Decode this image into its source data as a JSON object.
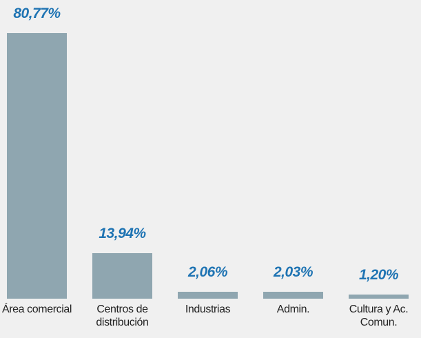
{
  "chart_data": {
    "type": "bar",
    "categories": [
      "Área comercial",
      "Centros de distribución",
      "Industrias",
      "Admin.",
      "Cultura y Ac. Comun."
    ],
    "values": [
      80.77,
      13.94,
      2.06,
      2.03,
      1.2
    ],
    "value_labels": [
      "80,77%",
      "13,94%",
      "2,06%",
      "2,03%",
      "1,20%"
    ],
    "color": "#8fa6b0"
  }
}
